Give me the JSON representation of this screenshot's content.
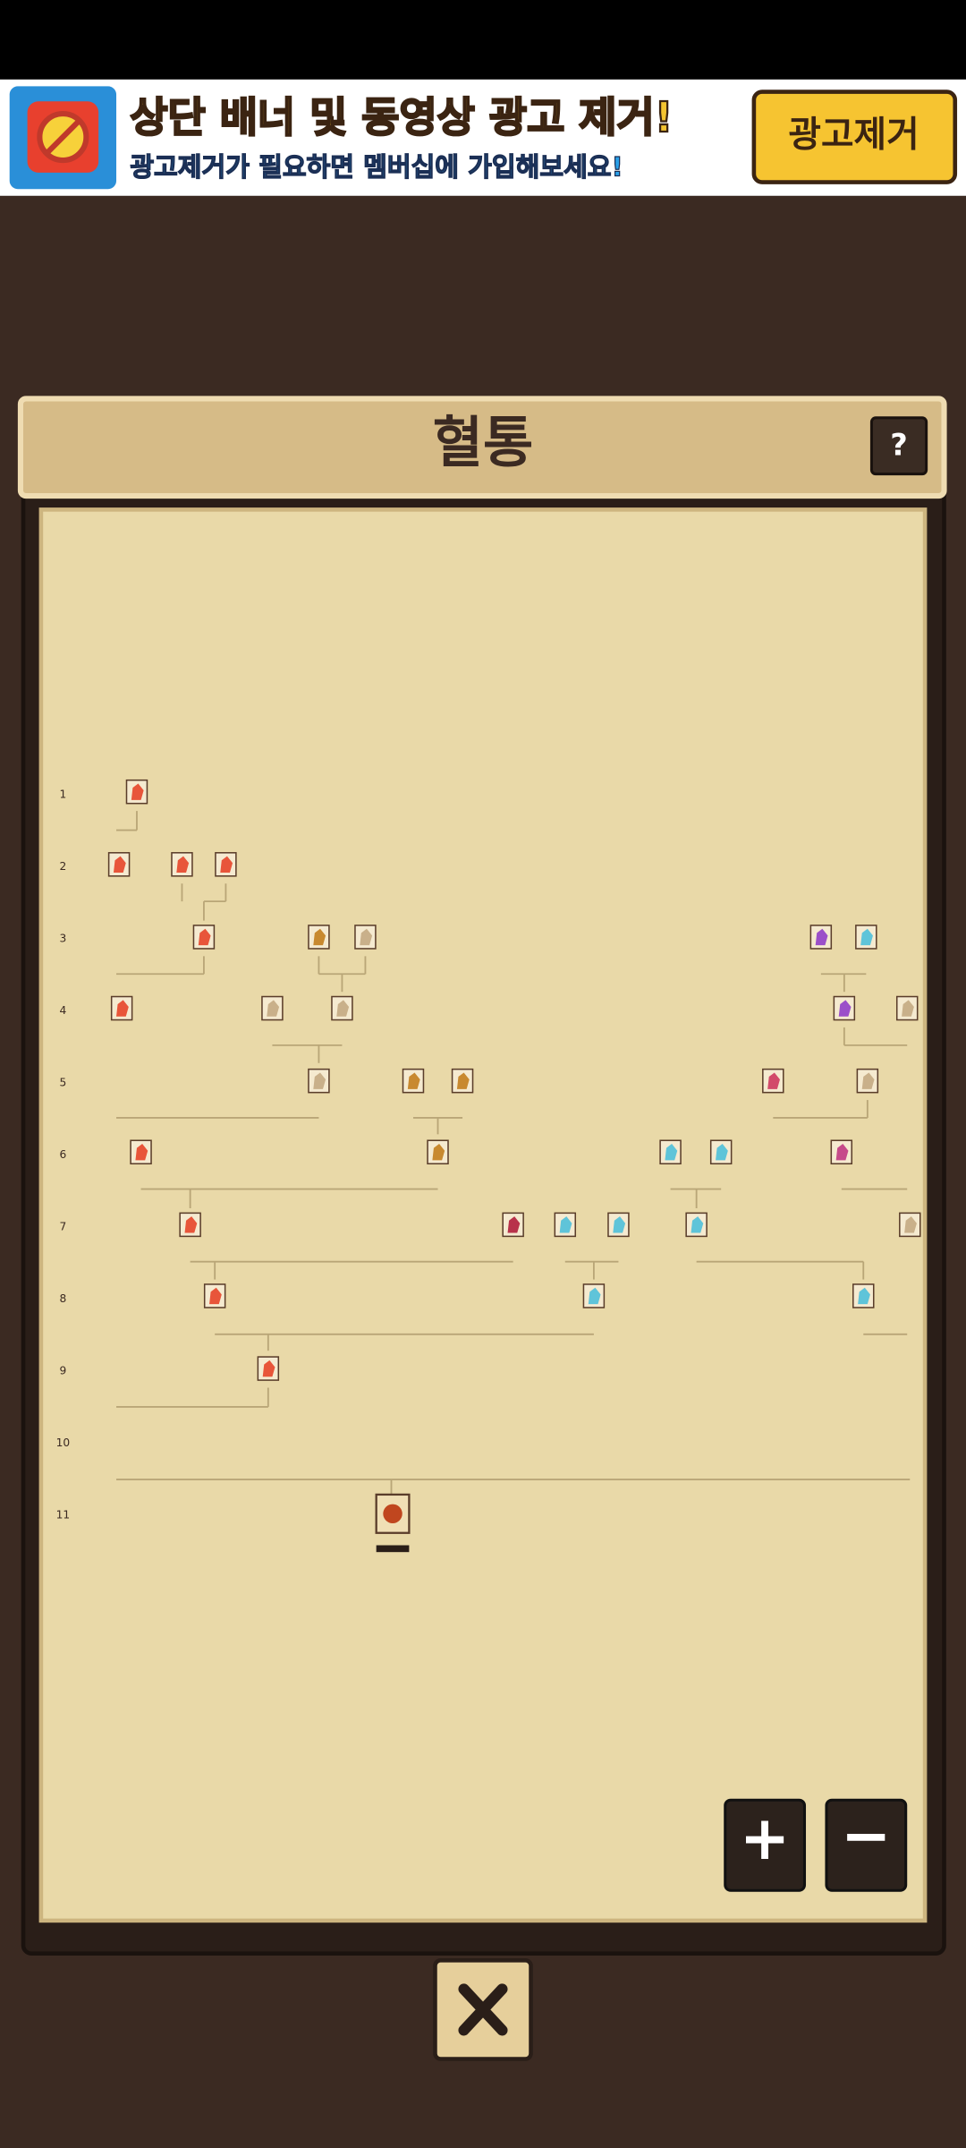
{
  "banner": {
    "headline": "상단 배너 및 동영상 광고 제거!",
    "subline": "광고제거가 필요하면 멤버십에 가입해보세요!",
    "button": "광고제거"
  },
  "panel": {
    "title": "혈통",
    "help": "?"
  },
  "generations": [
    1,
    2,
    3,
    4,
    5,
    6,
    7,
    8,
    9,
    10,
    11
  ],
  "zoom": {
    "in": "+",
    "out": "−"
  }
}
